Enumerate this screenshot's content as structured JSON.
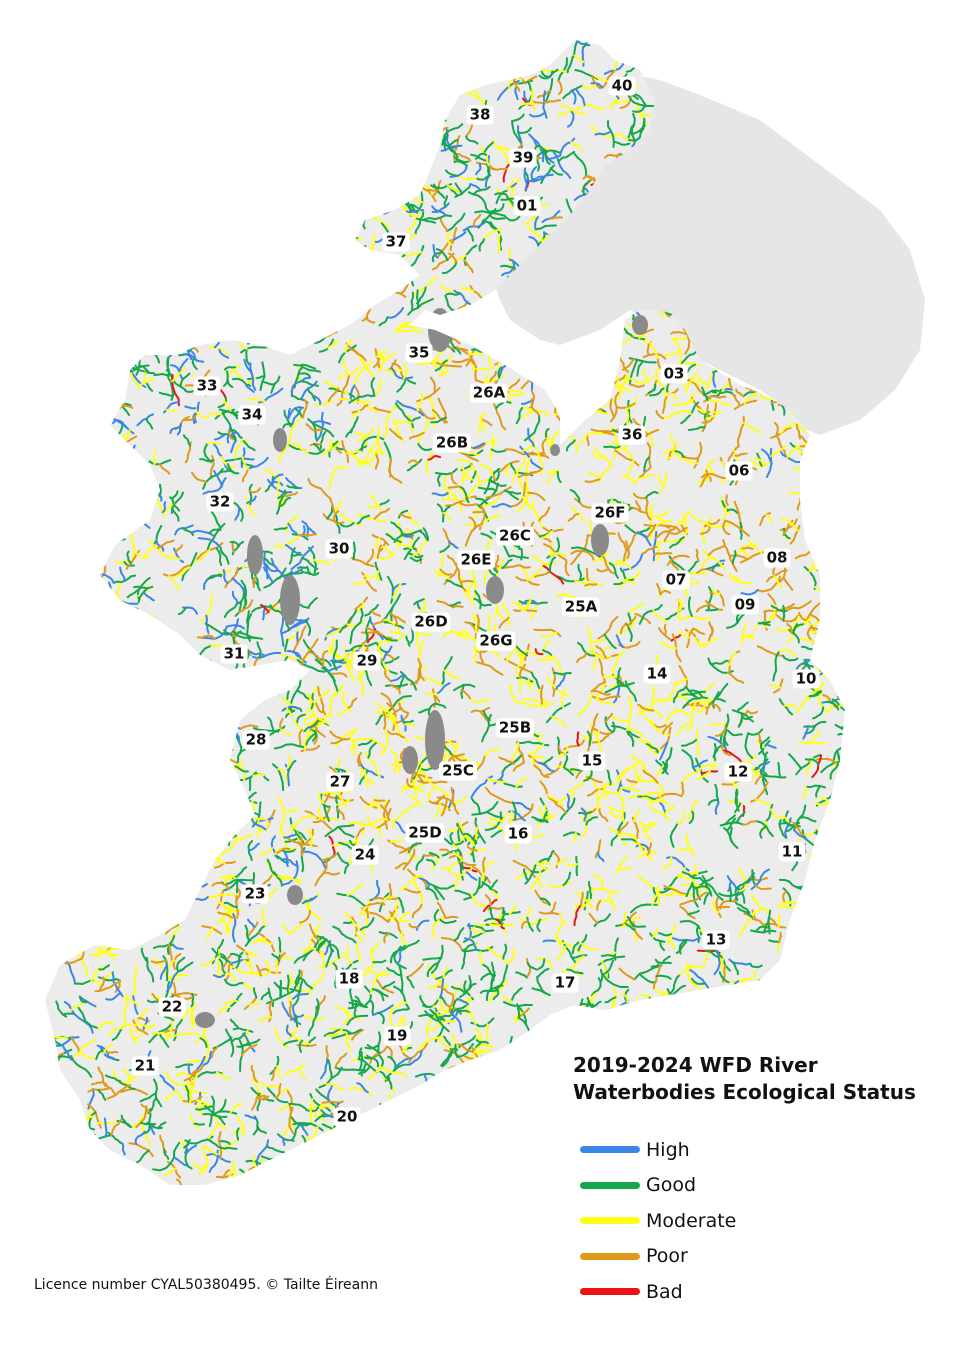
{
  "colors": {
    "sea": "#ffffff",
    "land_base": "#ececec",
    "northern_ireland": "#e6e6e6",
    "lakes": "#8a8a8a",
    "label_bg": "#ffffff"
  },
  "legend": {
    "title_line1": "2019-2024 WFD River",
    "title_line2": "Waterbodies Ecological Status",
    "items": [
      {
        "label": "High",
        "color": "#3a86e8"
      },
      {
        "label": "Good",
        "color": "#14a84a"
      },
      {
        "label": "Moderate",
        "color": "#ffff1a"
      },
      {
        "label": "Poor",
        "color": "#e09a1a"
      },
      {
        "label": "Bad",
        "color": "#e81414"
      }
    ]
  },
  "credit": "Licence number CYAL50380495. © Tailte Éireann",
  "catchments": [
    {
      "label": "40"
    },
    {
      "label": "38"
    },
    {
      "label": "39"
    },
    {
      "label": "01"
    },
    {
      "label": "37"
    },
    {
      "label": "35"
    },
    {
      "label": "03"
    },
    {
      "label": "33"
    },
    {
      "label": "26A"
    },
    {
      "label": "34"
    },
    {
      "label": "36"
    },
    {
      "label": "26B"
    },
    {
      "label": "06"
    },
    {
      "label": "32"
    },
    {
      "label": "26F"
    },
    {
      "label": "26C"
    },
    {
      "label": "30"
    },
    {
      "label": "26E"
    },
    {
      "label": "08"
    },
    {
      "label": "07"
    },
    {
      "label": "25A"
    },
    {
      "label": "09"
    },
    {
      "label": "26D"
    },
    {
      "label": "26G"
    },
    {
      "label": "31"
    },
    {
      "label": "29"
    },
    {
      "label": "14"
    },
    {
      "label": "10"
    },
    {
      "label": "28"
    },
    {
      "label": "25B"
    },
    {
      "label": "15"
    },
    {
      "label": "12"
    },
    {
      "label": "27"
    },
    {
      "label": "25C"
    },
    {
      "label": "25D"
    },
    {
      "label": "16"
    },
    {
      "label": "24"
    },
    {
      "label": "11"
    },
    {
      "label": "23"
    },
    {
      "label": "13"
    },
    {
      "label": "18"
    },
    {
      "label": "17"
    },
    {
      "label": "22"
    },
    {
      "label": "19"
    },
    {
      "label": "21"
    },
    {
      "label": "20"
    }
  ]
}
